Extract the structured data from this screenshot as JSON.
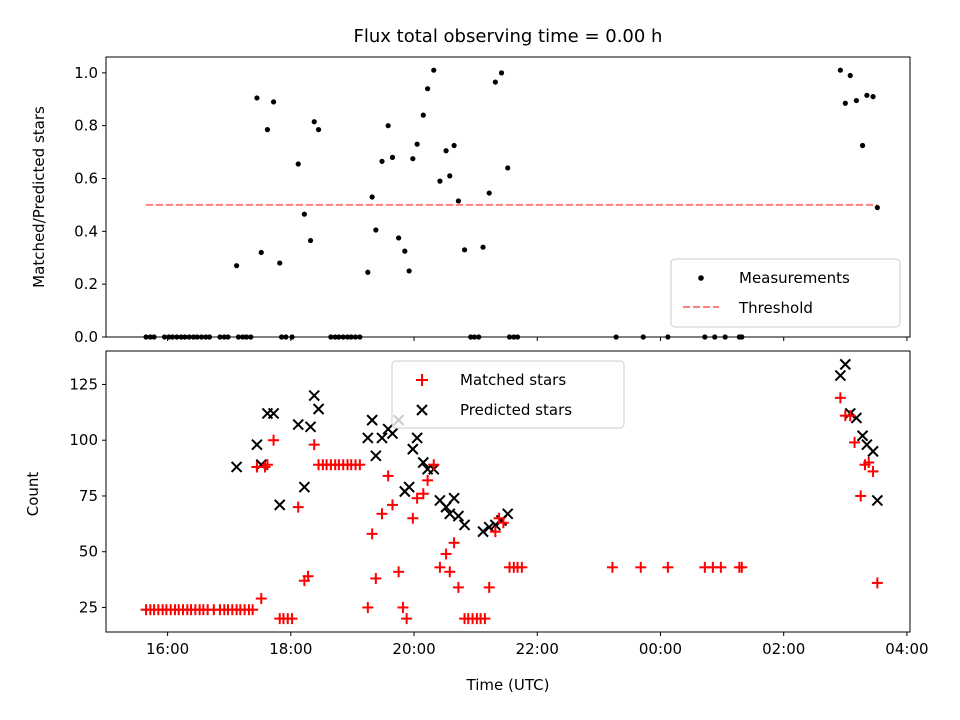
{
  "figure": {
    "title": "Flux total observing time = 0.00 h",
    "xlabel": "Time (UTC)",
    "xticks": [
      "16:00",
      "18:00",
      "20:00",
      "22:00",
      "00:00",
      "02:00",
      "04:00"
    ]
  },
  "chart_data": [
    {
      "type": "scatter",
      "panel": "top",
      "ylabel": "Matched/Predicted stars",
      "xrange_hours": [
        15.0,
        28.05
      ],
      "ylim": [
        0.0,
        1.06
      ],
      "yticks": [
        "0.0",
        "0.2",
        "0.4",
        "0.6",
        "0.8",
        "1.0"
      ],
      "legend_position": "lower-right",
      "series": [
        {
          "name": "Measurements",
          "marker": "dot",
          "color": "#000000",
          "points": [
            [
              15.65,
              0
            ],
            [
              15.72,
              0
            ],
            [
              15.78,
              0
            ],
            [
              15.95,
              0
            ],
            [
              16.02,
              0
            ],
            [
              16.08,
              0
            ],
            [
              16.15,
              0
            ],
            [
              16.22,
              0
            ],
            [
              16.28,
              0
            ],
            [
              16.35,
              0
            ],
            [
              16.42,
              0
            ],
            [
              16.48,
              0
            ],
            [
              16.55,
              0
            ],
            [
              16.62,
              0
            ],
            [
              16.68,
              0
            ],
            [
              16.85,
              0
            ],
            [
              16.92,
              0
            ],
            [
              16.98,
              0
            ],
            [
              17.12,
              0.27
            ],
            [
              17.15,
              0
            ],
            [
              17.22,
              0
            ],
            [
              17.28,
              0
            ],
            [
              17.35,
              0
            ],
            [
              17.45,
              0.905
            ],
            [
              17.52,
              0.32
            ],
            [
              17.62,
              0.785
            ],
            [
              17.72,
              0.89
            ],
            [
              17.82,
              0.28
            ],
            [
              17.85,
              0
            ],
            [
              17.92,
              0
            ],
            [
              18.02,
              0
            ],
            [
              18.12,
              0.655
            ],
            [
              18.22,
              0.465
            ],
            [
              18.32,
              0.365
            ],
            [
              18.38,
              0.815
            ],
            [
              18.45,
              0.785
            ],
            [
              18.65,
              0
            ],
            [
              18.72,
              0
            ],
            [
              18.78,
              0
            ],
            [
              18.85,
              0
            ],
            [
              18.92,
              0
            ],
            [
              18.98,
              0
            ],
            [
              19.05,
              0
            ],
            [
              19.12,
              0
            ],
            [
              19.25,
              0.245
            ],
            [
              19.32,
              0.53
            ],
            [
              19.38,
              0.405
            ],
            [
              19.48,
              0.665
            ],
            [
              19.58,
              0.8
            ],
            [
              19.65,
              0.68
            ],
            [
              19.75,
              0.375
            ],
            [
              19.85,
              0.325
            ],
            [
              19.92,
              0.25
            ],
            [
              19.98,
              0.675
            ],
            [
              20.05,
              0.73
            ],
            [
              20.15,
              0.84
            ],
            [
              20.22,
              0.94
            ],
            [
              20.32,
              1.01
            ],
            [
              20.42,
              0.59
            ],
            [
              20.52,
              0.705
            ],
            [
              20.58,
              0.61
            ],
            [
              20.65,
              0.725
            ],
            [
              20.72,
              0.515
            ],
            [
              20.82,
              0.33
            ],
            [
              20.92,
              0
            ],
            [
              20.98,
              0
            ],
            [
              21.05,
              0
            ],
            [
              21.12,
              0.34
            ],
            [
              21.22,
              0.545
            ],
            [
              21.32,
              0.965
            ],
            [
              21.42,
              1.0
            ],
            [
              21.52,
              0.64
            ],
            [
              21.55,
              0
            ],
            [
              21.62,
              0
            ],
            [
              21.68,
              0
            ],
            [
              23.28,
              0
            ],
            [
              23.72,
              0
            ],
            [
              24.12,
              0
            ],
            [
              24.72,
              0
            ],
            [
              24.88,
              0
            ],
            [
              25.05,
              0
            ],
            [
              25.28,
              0
            ],
            [
              25.32,
              0
            ],
            [
              26.92,
              1.01
            ],
            [
              27.0,
              0.885
            ],
            [
              27.08,
              0.99
            ],
            [
              27.18,
              0.895
            ],
            [
              27.28,
              0.725
            ],
            [
              27.35,
              0.915
            ],
            [
              27.45,
              0.91
            ],
            [
              27.52,
              0.49
            ]
          ]
        },
        {
          "name": "Threshold",
          "marker": "dashed-line",
          "color": "#ff7f7f",
          "points": [
            [
              15.65,
              0.5
            ],
            [
              27.52,
              0.5
            ]
          ]
        }
      ]
    },
    {
      "type": "scatter",
      "panel": "bottom",
      "ylabel": "Count",
      "xrange_hours": [
        15.0,
        28.05
      ],
      "ylim": [
        14,
        140
      ],
      "yticks": [
        "25",
        "50",
        "75",
        "100",
        "125"
      ],
      "legend_position": "top-center",
      "series": [
        {
          "name": "Matched stars",
          "marker": "plus",
          "color": "#ff0000",
          "points": [
            [
              15.65,
              24
            ],
            [
              15.72,
              24
            ],
            [
              15.78,
              24
            ],
            [
              15.85,
              24
            ],
            [
              15.92,
              24
            ],
            [
              15.98,
              24
            ],
            [
              16.05,
              24
            ],
            [
              16.12,
              24
            ],
            [
              16.18,
              24
            ],
            [
              16.25,
              24
            ],
            [
              16.32,
              24
            ],
            [
              16.38,
              24
            ],
            [
              16.45,
              24
            ],
            [
              16.52,
              24
            ],
            [
              16.58,
              24
            ],
            [
              16.65,
              24
            ],
            [
              16.75,
              24
            ],
            [
              16.85,
              24
            ],
            [
              16.92,
              24
            ],
            [
              16.98,
              24
            ],
            [
              17.05,
              24
            ],
            [
              17.12,
              24
            ],
            [
              17.18,
              24
            ],
            [
              17.25,
              24
            ],
            [
              17.32,
              24
            ],
            [
              17.38,
              24
            ],
            [
              17.45,
              88
            ],
            [
              17.52,
              29
            ],
            [
              17.58,
              88
            ],
            [
              17.62,
              89
            ],
            [
              17.72,
              100
            ],
            [
              17.82,
              20
            ],
            [
              17.88,
              20
            ],
            [
              17.95,
              20
            ],
            [
              18.02,
              20
            ],
            [
              18.12,
              70
            ],
            [
              18.22,
              37
            ],
            [
              18.28,
              39
            ],
            [
              18.38,
              98
            ],
            [
              18.45,
              89
            ],
            [
              18.52,
              89
            ],
            [
              18.58,
              89
            ],
            [
              18.65,
              89
            ],
            [
              18.72,
              89
            ],
            [
              18.78,
              89
            ],
            [
              18.85,
              89
            ],
            [
              18.92,
              89
            ],
            [
              18.98,
              89
            ],
            [
              19.05,
              89
            ],
            [
              19.12,
              89
            ],
            [
              19.25,
              25
            ],
            [
              19.32,
              58
            ],
            [
              19.38,
              38
            ],
            [
              19.48,
              67
            ],
            [
              19.58,
              84
            ],
            [
              19.65,
              71
            ],
            [
              19.75,
              41
            ],
            [
              19.82,
              25
            ],
            [
              19.88,
              20
            ],
            [
              19.98,
              65
            ],
            [
              20.05,
              74
            ],
            [
              20.15,
              76
            ],
            [
              20.22,
              82
            ],
            [
              20.32,
              89
            ],
            [
              20.42,
              43
            ],
            [
              20.52,
              49
            ],
            [
              20.58,
              41
            ],
            [
              20.65,
              54
            ],
            [
              20.72,
              34
            ],
            [
              20.82,
              20
            ],
            [
              20.88,
              20
            ],
            [
              20.95,
              20
            ],
            [
              21.02,
              20
            ],
            [
              21.08,
              20
            ],
            [
              21.15,
              20
            ],
            [
              21.22,
              34
            ],
            [
              21.32,
              59
            ],
            [
              21.38,
              65
            ],
            [
              21.45,
              63
            ],
            [
              21.55,
              43
            ],
            [
              21.62,
              43
            ],
            [
              21.68,
              43
            ],
            [
              21.75,
              43
            ],
            [
              23.22,
              43
            ],
            [
              23.68,
              43
            ],
            [
              24.12,
              43
            ],
            [
              24.72,
              43
            ],
            [
              24.85,
              43
            ],
            [
              24.98,
              43
            ],
            [
              25.28,
              43
            ],
            [
              25.32,
              43
            ],
            [
              26.92,
              119
            ],
            [
              27.0,
              111
            ],
            [
              27.08,
              111
            ],
            [
              27.15,
              99
            ],
            [
              27.25,
              75
            ],
            [
              27.32,
              89
            ],
            [
              27.38,
              90
            ],
            [
              27.45,
              86
            ],
            [
              27.52,
              36
            ]
          ]
        },
        {
          "name": "Predicted stars",
          "marker": "x",
          "color": "#000000",
          "points": [
            [
              17.12,
              88
            ],
            [
              17.45,
              98
            ],
            [
              17.52,
              89
            ],
            [
              17.62,
              112
            ],
            [
              17.72,
              112
            ],
            [
              17.82,
              71
            ],
            [
              18.12,
              107
            ],
            [
              18.22,
              79
            ],
            [
              18.32,
              106
            ],
            [
              18.38,
              120
            ],
            [
              18.45,
              114
            ],
            [
              19.25,
              101
            ],
            [
              19.32,
              109
            ],
            [
              19.38,
              93
            ],
            [
              19.48,
              101
            ],
            [
              19.58,
              105
            ],
            [
              19.65,
              103
            ],
            [
              19.75,
              109
            ],
            [
              19.85,
              77
            ],
            [
              19.92,
              79
            ],
            [
              19.98,
              96
            ],
            [
              20.05,
              101
            ],
            [
              20.15,
              90
            ],
            [
              20.22,
              87
            ],
            [
              20.32,
              87
            ],
            [
              20.42,
              73
            ],
            [
              20.52,
              70
            ],
            [
              20.58,
              67
            ],
            [
              20.65,
              74
            ],
            [
              20.72,
              66
            ],
            [
              20.82,
              62
            ],
            [
              21.12,
              59
            ],
            [
              21.22,
              61
            ],
            [
              21.32,
              62
            ],
            [
              21.42,
              64
            ],
            [
              21.52,
              67
            ],
            [
              26.92,
              129
            ],
            [
              27.0,
              134
            ],
            [
              27.08,
              112
            ],
            [
              27.18,
              110
            ],
            [
              27.28,
              102
            ],
            [
              27.35,
              98
            ],
            [
              27.45,
              95
            ],
            [
              27.52,
              73
            ]
          ]
        }
      ]
    }
  ]
}
